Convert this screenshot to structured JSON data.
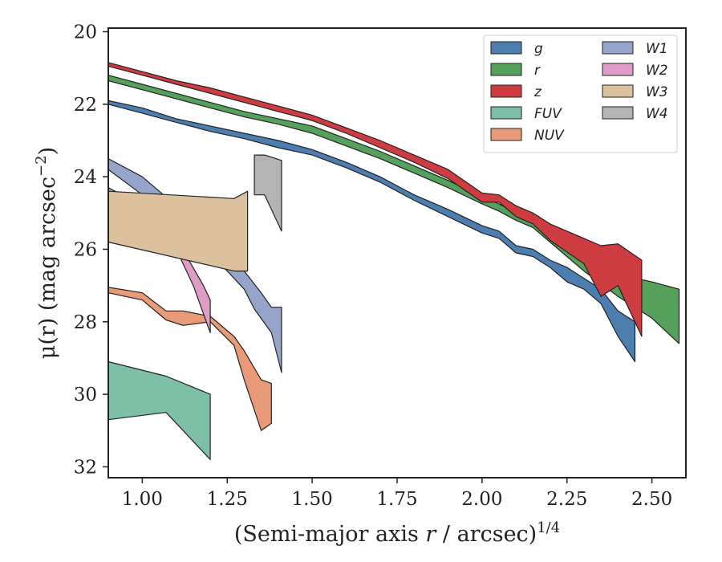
{
  "chart_data": {
    "type": "area",
    "xlabel": "(Semi-major axis r / arcsec)^1/4",
    "ylabel": "μ(r) (mag arcsec−2)",
    "xlim": [
      0.9,
      2.6
    ],
    "ylim": [
      32.3,
      19.9
    ],
    "y_inverted": true,
    "grid": false,
    "legend_position": "top-right",
    "x_ticks": [
      "1.00",
      "1.25",
      "1.50",
      "1.75",
      "2.00",
      "2.25",
      "2.50"
    ],
    "y_ticks": [
      "20",
      "22",
      "24",
      "26",
      "28",
      "30",
      "32"
    ],
    "series": [
      {
        "name": "g",
        "color": "#4c7eaf",
        "upper": [
          [
            0.9,
            21.9
          ],
          [
            1.0,
            22.1
          ],
          [
            1.1,
            22.4
          ],
          [
            1.2,
            22.6
          ],
          [
            1.3,
            22.8
          ],
          [
            1.4,
            23.0
          ],
          [
            1.5,
            23.25
          ],
          [
            1.6,
            23.6
          ],
          [
            1.7,
            24.0
          ],
          [
            1.8,
            24.5
          ],
          [
            1.9,
            24.9
          ],
          [
            2.0,
            25.35
          ],
          [
            2.05,
            25.5
          ],
          [
            2.1,
            25.9
          ],
          [
            2.15,
            26.0
          ],
          [
            2.2,
            26.3
          ],
          [
            2.25,
            26.5
          ],
          [
            2.3,
            26.8
          ],
          [
            2.35,
            27.1
          ],
          [
            2.4,
            27.7
          ],
          [
            2.45,
            28.0
          ]
        ],
        "lower": [
          [
            0.9,
            22.0
          ],
          [
            1.0,
            22.25
          ],
          [
            1.1,
            22.5
          ],
          [
            1.2,
            22.75
          ],
          [
            1.3,
            22.95
          ],
          [
            1.4,
            23.2
          ],
          [
            1.5,
            23.4
          ],
          [
            1.6,
            23.75
          ],
          [
            1.7,
            24.15
          ],
          [
            1.8,
            24.65
          ],
          [
            1.9,
            25.1
          ],
          [
            2.0,
            25.55
          ],
          [
            2.05,
            25.7
          ],
          [
            2.1,
            26.1
          ],
          [
            2.15,
            26.2
          ],
          [
            2.2,
            26.5
          ],
          [
            2.25,
            26.9
          ],
          [
            2.3,
            27.1
          ],
          [
            2.35,
            27.5
          ],
          [
            2.4,
            28.4
          ],
          [
            2.45,
            29.1
          ]
        ]
      },
      {
        "name": "r",
        "color": "#55a05a",
        "upper": [
          [
            0.9,
            21.2
          ],
          [
            1.0,
            21.45
          ],
          [
            1.1,
            21.7
          ],
          [
            1.2,
            21.95
          ],
          [
            1.3,
            22.2
          ],
          [
            1.4,
            22.4
          ],
          [
            1.5,
            22.6
          ],
          [
            1.6,
            22.95
          ],
          [
            1.7,
            23.3
          ],
          [
            1.8,
            23.7
          ],
          [
            1.9,
            24.1
          ],
          [
            2.0,
            24.55
          ],
          [
            2.05,
            24.75
          ],
          [
            2.1,
            25.0
          ],
          [
            2.15,
            25.2
          ],
          [
            2.2,
            25.6
          ],
          [
            2.3,
            26.2
          ],
          [
            2.4,
            26.7
          ],
          [
            2.5,
            26.9
          ],
          [
            2.58,
            27.1
          ]
        ],
        "lower": [
          [
            0.9,
            21.35
          ],
          [
            1.0,
            21.6
          ],
          [
            1.1,
            21.85
          ],
          [
            1.2,
            22.1
          ],
          [
            1.3,
            22.35
          ],
          [
            1.4,
            22.55
          ],
          [
            1.5,
            22.8
          ],
          [
            1.6,
            23.15
          ],
          [
            1.7,
            23.5
          ],
          [
            1.8,
            23.9
          ],
          [
            1.9,
            24.3
          ],
          [
            2.0,
            24.75
          ],
          [
            2.05,
            24.95
          ],
          [
            2.1,
            25.2
          ],
          [
            2.15,
            25.4
          ],
          [
            2.2,
            25.8
          ],
          [
            2.3,
            26.6
          ],
          [
            2.4,
            27.3
          ],
          [
            2.5,
            27.9
          ],
          [
            2.58,
            28.6
          ]
        ]
      },
      {
        "name": "z",
        "color": "#cc3c40",
        "upper": [
          [
            0.9,
            20.85
          ],
          [
            1.0,
            21.1
          ],
          [
            1.1,
            21.35
          ],
          [
            1.2,
            21.55
          ],
          [
            1.3,
            21.8
          ],
          [
            1.4,
            22.05
          ],
          [
            1.5,
            22.3
          ],
          [
            1.6,
            22.65
          ],
          [
            1.7,
            23.0
          ],
          [
            1.8,
            23.4
          ],
          [
            1.9,
            23.8
          ],
          [
            2.0,
            24.45
          ],
          [
            2.05,
            24.5
          ],
          [
            2.1,
            24.8
          ],
          [
            2.15,
            25.0
          ],
          [
            2.2,
            25.3
          ],
          [
            2.3,
            25.7
          ],
          [
            2.35,
            25.9
          ],
          [
            2.4,
            25.85
          ],
          [
            2.47,
            26.3
          ]
        ],
        "lower": [
          [
            0.9,
            20.95
          ],
          [
            1.0,
            21.2
          ],
          [
            1.1,
            21.45
          ],
          [
            1.2,
            21.7
          ],
          [
            1.3,
            21.95
          ],
          [
            1.4,
            22.2
          ],
          [
            1.5,
            22.45
          ],
          [
            1.6,
            22.8
          ],
          [
            1.7,
            23.2
          ],
          [
            1.8,
            23.6
          ],
          [
            1.9,
            24.05
          ],
          [
            2.0,
            24.7
          ],
          [
            2.05,
            24.7
          ],
          [
            2.1,
            25.1
          ],
          [
            2.15,
            25.3
          ],
          [
            2.2,
            25.75
          ],
          [
            2.3,
            26.4
          ],
          [
            2.35,
            27.3
          ],
          [
            2.4,
            27.0
          ],
          [
            2.47,
            28.4
          ]
        ]
      },
      {
        "name": "FUV",
        "color": "#7dbfa7",
        "upper": [
          [
            0.9,
            29.1
          ],
          [
            1.07,
            29.5
          ],
          [
            1.2,
            30.0
          ]
        ],
        "lower": [
          [
            0.9,
            30.7
          ],
          [
            1.07,
            30.5
          ],
          [
            1.2,
            31.8
          ]
        ]
      },
      {
        "name": "NUV",
        "color": "#e99a78",
        "upper": [
          [
            0.9,
            27.05
          ],
          [
            1.0,
            27.2
          ],
          [
            1.07,
            27.7
          ],
          [
            1.12,
            27.7
          ],
          [
            1.2,
            27.85
          ],
          [
            1.27,
            28.4
          ],
          [
            1.3,
            28.8
          ],
          [
            1.35,
            29.6
          ],
          [
            1.38,
            29.7
          ]
        ],
        "lower": [
          [
            0.9,
            27.2
          ],
          [
            1.0,
            27.4
          ],
          [
            1.07,
            27.95
          ],
          [
            1.12,
            28.1
          ],
          [
            1.2,
            28.0
          ],
          [
            1.27,
            28.65
          ],
          [
            1.3,
            29.6
          ],
          [
            1.35,
            31.0
          ],
          [
            1.38,
            30.8
          ]
        ]
      },
      {
        "name": "W1",
        "color": "#94a5c9",
        "upper": [
          [
            0.9,
            23.5
          ],
          [
            1.0,
            24.0
          ],
          [
            1.1,
            24.8
          ],
          [
            1.2,
            25.6
          ],
          [
            1.3,
            26.6
          ],
          [
            1.35,
            27.2
          ],
          [
            1.38,
            27.6
          ],
          [
            1.41,
            27.6
          ]
        ],
        "lower": [
          [
            0.9,
            23.8
          ],
          [
            1.0,
            24.5
          ],
          [
            1.1,
            25.3
          ],
          [
            1.2,
            26.1
          ],
          [
            1.3,
            27.1
          ],
          [
            1.33,
            27.65
          ],
          [
            1.38,
            28.3
          ],
          [
            1.41,
            29.4
          ]
        ]
      },
      {
        "name": "W2",
        "color": "#dd9dc6",
        "upper": [
          [
            0.9,
            24.3
          ],
          [
            1.0,
            24.8
          ],
          [
            1.1,
            25.7
          ],
          [
            1.18,
            27.0
          ],
          [
            1.2,
            27.4
          ]
        ],
        "lower": [
          [
            0.9,
            24.6
          ],
          [
            1.0,
            25.1
          ],
          [
            1.1,
            26.0
          ],
          [
            1.15,
            27.0
          ],
          [
            1.2,
            28.3
          ]
        ]
      },
      {
        "name": "W3",
        "color": "#dcc19f",
        "upper": [
          [
            0.9,
            24.4
          ],
          [
            1.27,
            24.6
          ],
          [
            1.31,
            24.4
          ]
        ],
        "lower": [
          [
            0.9,
            25.8
          ],
          [
            1.27,
            26.6
          ],
          [
            1.31,
            26.6
          ]
        ]
      },
      {
        "name": "W4",
        "color": "#b4b4b4",
        "upper": [
          [
            1.33,
            23.4
          ],
          [
            1.36,
            23.4
          ],
          [
            1.41,
            23.55
          ]
        ],
        "lower": [
          [
            1.33,
            24.5
          ],
          [
            1.36,
            24.5
          ],
          [
            1.41,
            25.5
          ]
        ]
      }
    ]
  }
}
